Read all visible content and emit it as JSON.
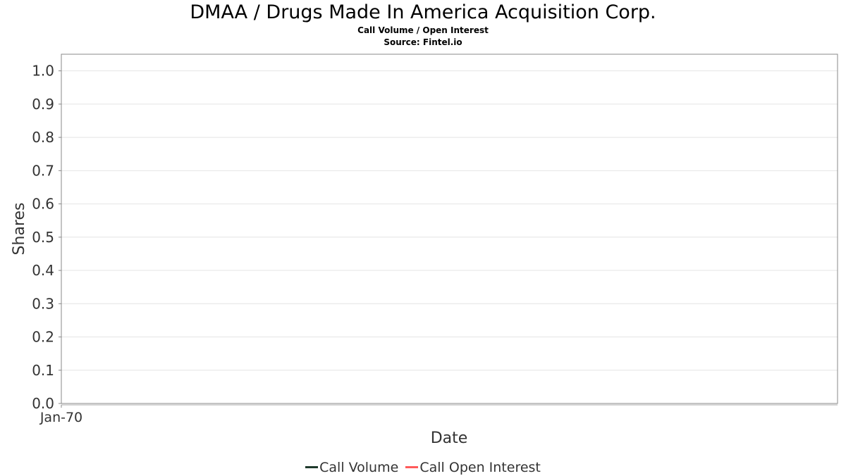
{
  "chart_data": {
    "type": "line",
    "title": "DMAA / Drugs Made In America Acquisition Corp.",
    "subtitle": "Call Volume / Open Interest",
    "source": "Source: Fintel.io",
    "xlabel": "Date",
    "ylabel": "Shares",
    "x_tick_labels": [
      "Jan-70"
    ],
    "y_ticks": [
      "0.0",
      "0.1",
      "0.2",
      "0.3",
      "0.4",
      "0.5",
      "0.6",
      "0.7",
      "0.8",
      "0.9",
      "1.0"
    ],
    "ylim": [
      0,
      1.05
    ],
    "grid": true,
    "legend_position": "bottom",
    "series": [
      {
        "name": "Call Volume",
        "color": "#1f3a2c",
        "x": [],
        "y": []
      },
      {
        "name": "Call Open Interest",
        "color": "#ff5a5a",
        "x": [],
        "y": []
      }
    ]
  }
}
